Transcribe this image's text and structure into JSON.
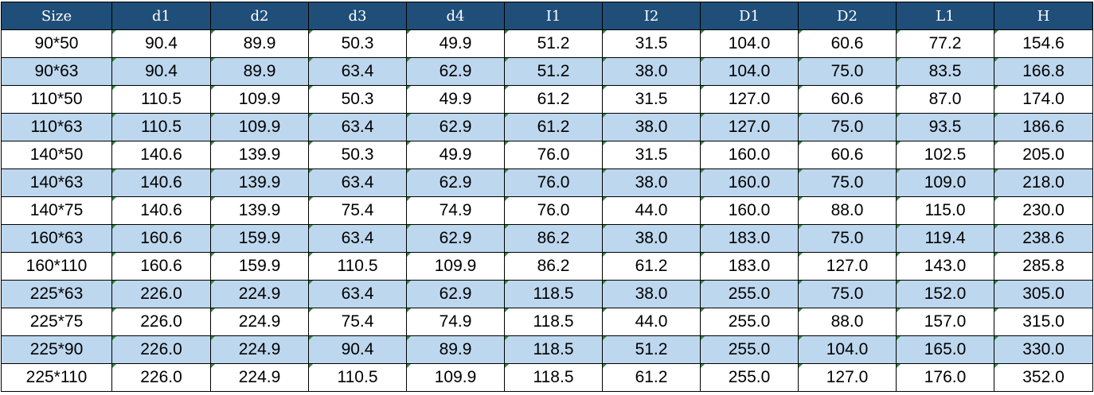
{
  "table": {
    "header": [
      "Size",
      "d1",
      "d2",
      "d3",
      "d4",
      "I1",
      "I2",
      "D1",
      "D2",
      "L1",
      "H"
    ],
    "rows": [
      [
        "90*50",
        "90.4",
        "89.9",
        "50.3",
        "49.9",
        "51.2",
        "31.5",
        "104.0",
        "60.6",
        "77.2",
        "154.6"
      ],
      [
        "90*63",
        "90.4",
        "89.9",
        "63.4",
        "62.9",
        "51.2",
        "38.0",
        "104.0",
        "75.0",
        "83.5",
        "166.8"
      ],
      [
        "110*50",
        "110.5",
        "109.9",
        "50.3",
        "49.9",
        "61.2",
        "31.5",
        "127.0",
        "60.6",
        "87.0",
        "174.0"
      ],
      [
        "110*63",
        "110.5",
        "109.9",
        "63.4",
        "62.9",
        "61.2",
        "38.0",
        "127.0",
        "75.0",
        "93.5",
        "186.6"
      ],
      [
        "140*50",
        "140.6",
        "139.9",
        "50.3",
        "49.9",
        "76.0",
        "31.5",
        "160.0",
        "60.6",
        "102.5",
        "205.0"
      ],
      [
        "140*63",
        "140.6",
        "139.9",
        "63.4",
        "62.9",
        "76.0",
        "38.0",
        "160.0",
        "75.0",
        "109.0",
        "218.0"
      ],
      [
        "140*75",
        "140.6",
        "139.9",
        "75.4",
        "74.9",
        "76.0",
        "44.0",
        "160.0",
        "88.0",
        "115.0",
        "230.0"
      ],
      [
        "160*63",
        "160.6",
        "159.9",
        "63.4",
        "62.9",
        "86.2",
        "38.0",
        "183.0",
        "75.0",
        "119.4",
        "238.6"
      ],
      [
        "160*110",
        "160.6",
        "159.9",
        "110.5",
        "109.9",
        "86.2",
        "61.2",
        "183.0",
        "127.0",
        "143.0",
        "285.8"
      ],
      [
        "225*63",
        "226.0",
        "224.9",
        "63.4",
        "62.9",
        "118.5",
        "38.0",
        "255.0",
        "75.0",
        "152.0",
        "305.0"
      ],
      [
        "225*75",
        "226.0",
        "224.9",
        "75.4",
        "74.9",
        "118.5",
        "44.0",
        "255.0",
        "88.0",
        "157.0",
        "315.0"
      ],
      [
        "225*90",
        "226.0",
        "224.9",
        "90.4",
        "89.9",
        "118.5",
        "51.2",
        "255.0",
        "104.0",
        "165.0",
        "330.0"
      ],
      [
        "225*110",
        "226.0",
        "224.9",
        "110.5",
        "109.9",
        "118.5",
        "61.2",
        "255.0",
        "127.0",
        "176.0",
        "352.0"
      ]
    ]
  }
}
